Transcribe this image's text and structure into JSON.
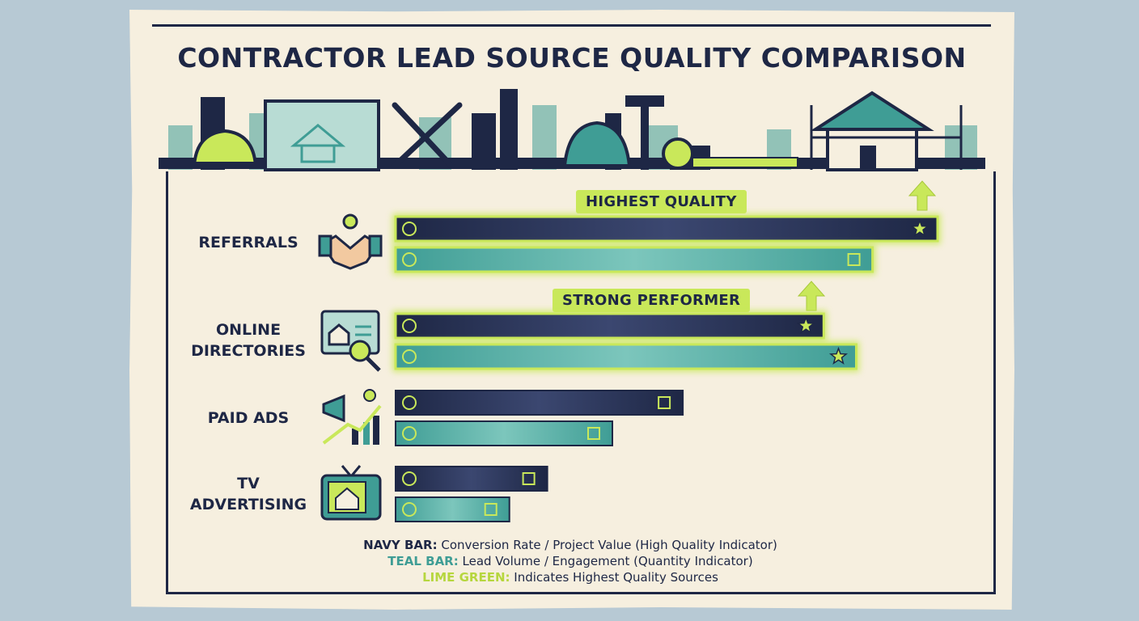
{
  "title": "CONTRACTOR LEAD SOURCE QUALITY COMPARISON",
  "badges": {
    "highest": "HIGHEST QUALITY",
    "strong": "STRONG PERFORMER"
  },
  "chart_data": {
    "type": "bar",
    "orientation": "horizontal",
    "title": "CONTRACTOR LEAD SOURCE QUALITY COMPARISON",
    "categories": [
      "REFERRALS",
      "ONLINE DIRECTORIES",
      "PAID ADS",
      "TV ADVERTISING"
    ],
    "series": [
      {
        "name": "NAVY BAR",
        "color": "#1e2745",
        "values": [
          100,
          79,
          53,
          28
        ]
      },
      {
        "name": "TEAL BAR",
        "color": "#3f9d95",
        "values": [
          88,
          85,
          40,
          21
        ]
      }
    ],
    "highlighted": [
      {
        "category": "REFERRALS",
        "series": "NAVY BAR",
        "star": true
      },
      {
        "category": "REFERRALS",
        "series": "TEAL BAR",
        "star": false
      },
      {
        "category": "ONLINE DIRECTORIES",
        "series": "NAVY BAR",
        "star": true
      },
      {
        "category": "ONLINE DIRECTORIES",
        "series": "TEAL BAR",
        "star": true
      }
    ],
    "highlight_color": "#c9e85a",
    "xlabel": "",
    "ylabel": "",
    "xlim": [
      0,
      100
    ],
    "grid": false
  },
  "category_labels": {
    "referrals": "REFERRALS",
    "online_1": "ONLINE",
    "online_2": "DIRECTORIES",
    "paid": "PAID ADS",
    "tv_1": "TV",
    "tv_2": "ADVERTISING"
  },
  "legend": {
    "navy_key": "NAVY BAR:",
    "navy_text": " Conversion Rate / Project Value (High Quality Indicator)",
    "teal_key": "TEAL BAR:",
    "teal_text": " Lead Volume / Engagement (Quantity Indicator)",
    "lime_key": "LIME GREEN:",
    "lime_text": " Indicates Highest Quality Sources"
  },
  "colors": {
    "navy": "#1e2745",
    "teal": "#3f9d95",
    "lime": "#c9e85a",
    "paper": "#f6efdf",
    "background": "#b7c9d4"
  },
  "icons": {
    "skyline": [
      "hard-hat-icon",
      "blueprint-icon",
      "wrench-hammer-icon",
      "hammer-icon",
      "tape-measure-icon",
      "house-scaffold-icon"
    ],
    "categories": [
      "handshake-icon",
      "directory-screen-icon",
      "megaphone-growth-icon",
      "tv-house-icon"
    ],
    "bar_icons": [
      "hard-hat-icon",
      "tools-icon",
      "house-icon",
      "dollar-icon",
      "growth-chart-icon",
      "signal-icon",
      "tv-icon",
      "star-icon"
    ]
  }
}
